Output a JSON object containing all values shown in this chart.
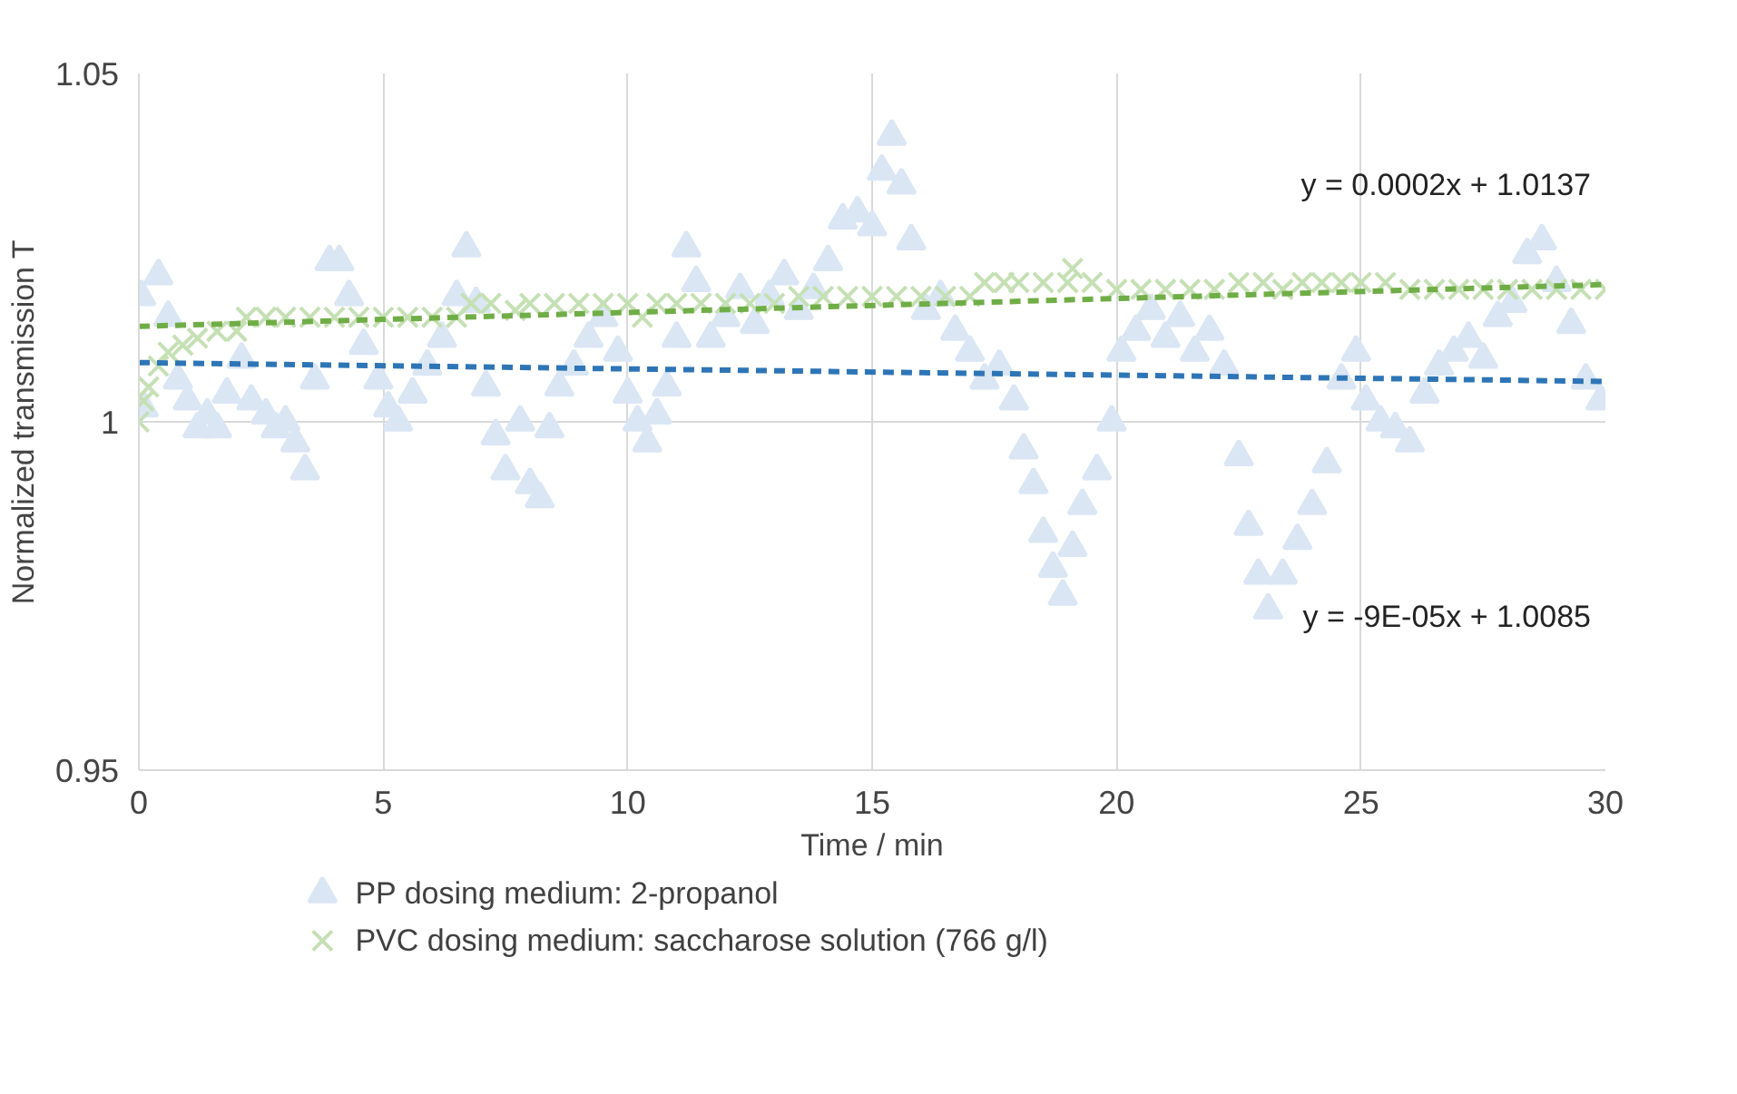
{
  "chart_data": {
    "type": "scatter",
    "xlabel": "Time / min",
    "ylabel": "Normalized transmission T",
    "xlim": [
      0,
      30
    ],
    "ylim": [
      0.95,
      1.05
    ],
    "xticks": [
      0,
      5,
      10,
      15,
      20,
      25,
      30
    ],
    "yticks": [
      0.95,
      {
        "value": 1,
        "label": "1"
      },
      1.05
    ],
    "grid": true,
    "legend": "bottom",
    "series": [
      {
        "name": "PP dosing medium: 2-propanol",
        "color": "#dae6f4",
        "marker": "triangle",
        "x": [
          0.05,
          0.1,
          0.4,
          0.6,
          0.8,
          1.0,
          1.2,
          1.4,
          1.6,
          1.8,
          2.1,
          2.3,
          2.6,
          2.8,
          3.0,
          3.2,
          3.4,
          3.6,
          3.9,
          4.1,
          4.3,
          4.6,
          4.9,
          5.1,
          5.3,
          5.6,
          5.9,
          6.2,
          6.5,
          6.7,
          6.9,
          7.1,
          7.3,
          7.5,
          7.8,
          8.0,
          8.2,
          8.4,
          8.6,
          8.9,
          9.2,
          9.5,
          9.8,
          10.0,
          10.2,
          10.4,
          10.6,
          10.8,
          11.0,
          11.2,
          11.4,
          11.7,
          12.0,
          12.3,
          12.6,
          12.9,
          13.2,
          13.5,
          13.8,
          14.1,
          14.4,
          14.7,
          15.0,
          15.2,
          15.4,
          15.6,
          15.8,
          16.1,
          16.4,
          16.7,
          17.0,
          17.3,
          17.6,
          17.9,
          18.1,
          18.3,
          18.5,
          18.7,
          18.9,
          19.1,
          19.3,
          19.6,
          19.9,
          20.1,
          20.4,
          20.7,
          21.0,
          21.3,
          21.6,
          21.9,
          22.2,
          22.5,
          22.7,
          22.9,
          23.1,
          23.4,
          23.7,
          24.0,
          24.3,
          24.6,
          24.9,
          25.1,
          25.4,
          25.7,
          26.0,
          26.3,
          26.6,
          26.9,
          27.2,
          27.5,
          27.8,
          28.1,
          28.4,
          28.7,
          29.0,
          29.3,
          29.6,
          29.9
        ],
        "values": [
          1.018,
          1.002,
          1.021,
          1.015,
          1.006,
          1.003,
          0.999,
          1.001,
          0.999,
          1.004,
          1.009,
          1.003,
          1.001,
          0.999,
          1.0,
          0.997,
          0.993,
          1.006,
          1.023,
          1.023,
          1.018,
          1.011,
          1.006,
          1.002,
          1.0,
          1.004,
          1.008,
          1.012,
          1.018,
          1.025,
          1.017,
          1.005,
          0.998,
          0.993,
          1.0,
          0.991,
          0.989,
          0.999,
          1.005,
          1.008,
          1.012,
          1.015,
          1.01,
          1.004,
          1.0,
          0.997,
          1.001,
          1.005,
          1.012,
          1.025,
          1.02,
          1.012,
          1.015,
          1.019,
          1.014,
          1.018,
          1.021,
          1.016,
          1.019,
          1.023,
          1.029,
          1.03,
          1.028,
          1.036,
          1.041,
          1.034,
          1.026,
          1.016,
          1.018,
          1.013,
          1.01,
          1.006,
          1.008,
          1.003,
          0.996,
          0.991,
          0.984,
          0.979,
          0.975,
          0.982,
          0.988,
          0.993,
          1.0,
          1.01,
          1.013,
          1.016,
          1.012,
          1.015,
          1.01,
          1.013,
          1.008,
          0.995,
          0.985,
          0.978,
          0.973,
          0.978,
          0.983,
          0.988,
          0.994,
          1.006,
          1.01,
          1.003,
          1.0,
          0.999,
          0.997,
          1.004,
          1.008,
          1.01,
          1.012,
          1.009,
          1.015,
          1.017,
          1.024,
          1.026,
          1.02,
          1.014,
          1.006,
          1.003
        ]
      },
      {
        "name": "PVC dosing medium: saccharose solution (766 g/l)",
        "color": "#c5e0b4",
        "marker": "cross",
        "x": [
          0.0,
          0.1,
          0.2,
          0.4,
          0.6,
          0.9,
          1.2,
          1.6,
          2.0,
          2.2,
          2.6,
          3.0,
          3.5,
          4.0,
          4.5,
          5.0,
          5.5,
          6.0,
          6.5,
          6.8,
          7.2,
          7.7,
          8.0,
          8.5,
          9.0,
          9.5,
          10.0,
          10.3,
          10.6,
          11.0,
          11.5,
          12.0,
          12.5,
          13.0,
          13.5,
          14.0,
          14.5,
          15.0,
          15.5,
          16.0,
          16.5,
          17.0,
          17.3,
          17.7,
          18.0,
          18.5,
          19.0,
          19.1,
          19.5,
          20.0,
          20.5,
          21.0,
          21.5,
          22.0,
          22.5,
          23.0,
          23.4,
          23.8,
          24.2,
          24.6,
          25.0,
          25.5,
          26.0,
          26.5,
          27.0,
          27.5,
          28.0,
          28.5,
          29.0,
          29.5,
          30.0
        ],
        "values": [
          1.0,
          1.003,
          1.005,
          1.008,
          1.01,
          1.011,
          1.012,
          1.013,
          1.013,
          1.015,
          1.015,
          1.015,
          1.015,
          1.015,
          1.015,
          1.015,
          1.015,
          1.015,
          1.015,
          1.017,
          1.017,
          1.016,
          1.017,
          1.017,
          1.017,
          1.017,
          1.017,
          1.015,
          1.017,
          1.017,
          1.017,
          1.017,
          1.017,
          1.017,
          1.018,
          1.018,
          1.018,
          1.018,
          1.018,
          1.018,
          1.018,
          1.018,
          1.02,
          1.02,
          1.02,
          1.02,
          1.02,
          1.022,
          1.02,
          1.019,
          1.019,
          1.019,
          1.019,
          1.019,
          1.02,
          1.02,
          1.019,
          1.02,
          1.02,
          1.02,
          1.02,
          1.02,
          1.019,
          1.019,
          1.019,
          1.019,
          1.019,
          1.019,
          1.019,
          1.019,
          1.019
        ]
      },
      {
        "type": "line",
        "color": "#2e75b6",
        "line_style": "dashed",
        "x": [
          0,
          30
        ],
        "values": [
          1.0085,
          1.0058
        ]
      },
      {
        "type": "line",
        "color": "#70ad47",
        "line_style": "dashed",
        "x": [
          0,
          30
        ],
        "values": [
          1.0137,
          1.0197
        ]
      }
    ],
    "annotations": [
      "y = 0.0002x + 1.0137",
      "y = -9E-05x + 1.0085"
    ]
  }
}
